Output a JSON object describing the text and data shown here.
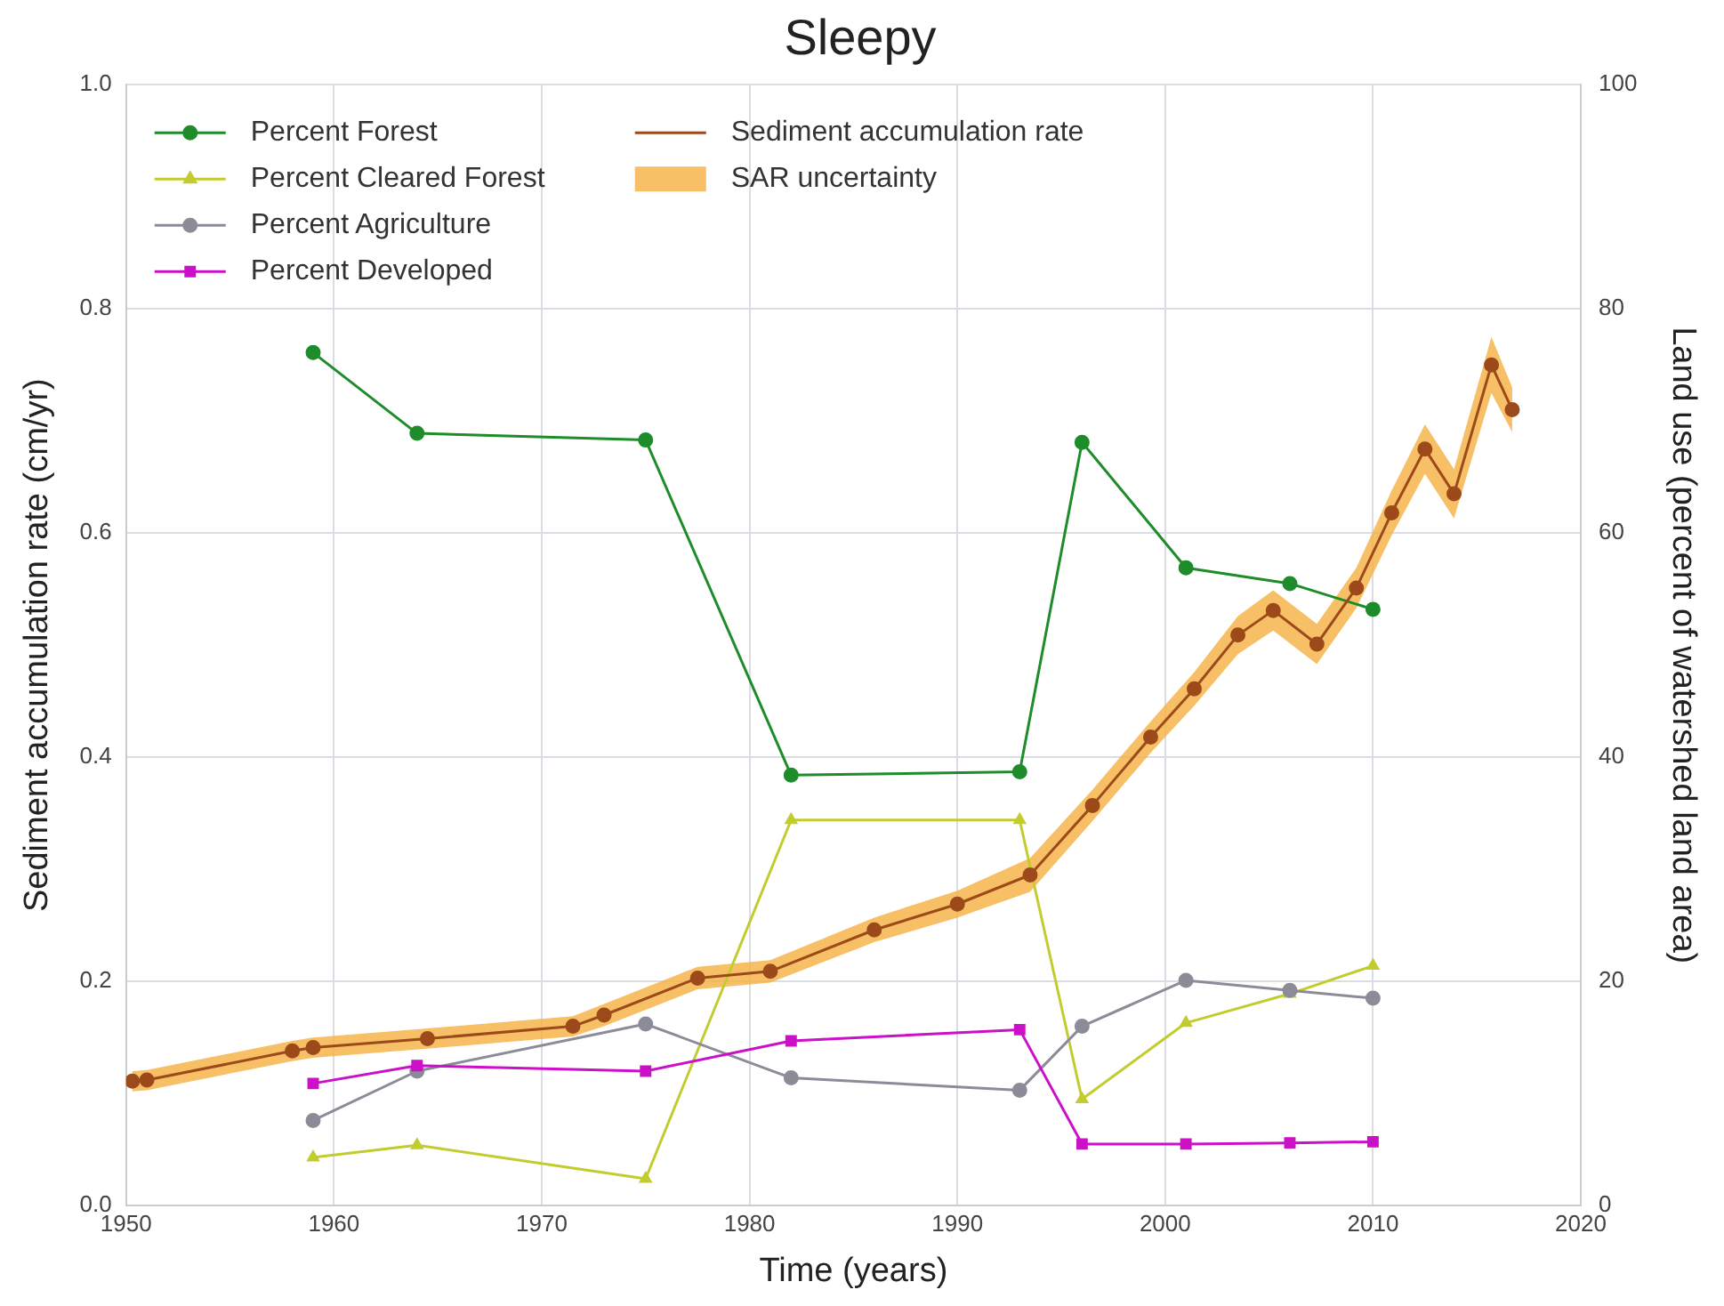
{
  "chart_data": {
    "type": "line",
    "title": "Sleepy",
    "xlabel": "Time (years)",
    "ylabel": "Sediment accumulation rate (cm/yr)",
    "y2label": "Land use (percent of watershed land area)",
    "xlim": [
      1950,
      2020
    ],
    "xticks": [
      1950,
      1960,
      1970,
      1980,
      1990,
      2000,
      2010,
      2020
    ],
    "ylim": [
      0,
      1.0
    ],
    "yticks": [
      {
        "value": 0,
        "label": "0.0"
      },
      {
        "value": 0.2,
        "label": "0.2"
      },
      {
        "value": 0.4,
        "label": "0.4"
      },
      {
        "value": 0.6,
        "label": "0.6"
      },
      {
        "value": 0.8,
        "label": "0.8"
      },
      {
        "value": 1.0,
        "label": "1.0"
      }
    ],
    "y2lim": [
      0,
      100
    ],
    "y2ticks": [
      0,
      20,
      40,
      60,
      80,
      100
    ],
    "grid": true,
    "legend": "top left",
    "line_style": "solid",
    "series": [
      {
        "name": "Percent Forest",
        "color": "#1e8c2a",
        "axis": "y2",
        "marker": "circle",
        "x": [
          1959,
          1964,
          1975,
          1982,
          1993,
          1996,
          2001,
          2006,
          2010
        ],
        "values": [
          76.1,
          68.9,
          68.3,
          38.4,
          38.7,
          68.1,
          56.9,
          55.5,
          53.2
        ]
      },
      {
        "name": "Percent Cleared Forest",
        "color": "#c3cc2e",
        "axis": "y2",
        "marker": "triangle",
        "x": [
          1959,
          1964,
          1975,
          1982,
          1993,
          1996,
          2001,
          2006,
          2010
        ],
        "values": [
          4.3,
          5.4,
          2.4,
          34.4,
          34.4,
          9.5,
          16.3,
          18.9,
          21.4
        ]
      },
      {
        "name": "Percent Agriculture",
        "color": "#8c8c98",
        "axis": "y2",
        "marker": "circle",
        "x": [
          1959,
          1964,
          1975,
          1982,
          1993,
          1996,
          2001,
          2006,
          2010
        ],
        "values": [
          7.6,
          12.0,
          16.2,
          11.4,
          10.3,
          16.0,
          20.1,
          19.2,
          18.5
        ]
      },
      {
        "name": "Percent Developed",
        "color": "#cc10c8",
        "axis": "y2",
        "marker": "square",
        "x": [
          1959,
          1964,
          1975,
          1982,
          1993,
          1996,
          2001,
          2006,
          2010
        ],
        "values": [
          10.9,
          12.5,
          12.0,
          14.7,
          15.7,
          5.5,
          5.5,
          5.6,
          5.7
        ]
      },
      {
        "name": "Sediment accumulation rate",
        "color": "#9c4a1a",
        "marker": "circle",
        "x": [
          1950.3,
          1951,
          1958,
          1959,
          1964.5,
          1971.5,
          1973,
          1977.5,
          1981,
          1986,
          1990,
          1993.5,
          1996.5,
          1999.3,
          2001.4,
          2003.5,
          2005.2,
          2007.3,
          2009.2,
          2010.9,
          2012.5,
          2013.9,
          2015.7,
          2016.7
        ],
        "values": [
          0.111,
          0.112,
          0.138,
          0.141,
          0.149,
          0.16,
          0.17,
          0.203,
          0.209,
          0.246,
          0.269,
          0.295,
          0.357,
          0.418,
          0.461,
          0.509,
          0.531,
          0.501,
          0.551,
          0.618,
          0.675,
          0.635,
          0.75,
          0.71
        ]
      },
      {
        "name": "SAR uncertainty",
        "type": "area",
        "color": "#f5b041",
        "x": [
          1950.3,
          1951,
          1958,
          1959,
          1964.5,
          1971.5,
          1973,
          1977.5,
          1981,
          1986,
          1990,
          1993.5,
          1996.5,
          1999.3,
          2001.4,
          2003.5,
          2005.2,
          2007.3,
          2009.2,
          2010.9,
          2012.5,
          2013.9,
          2015.7,
          2016.7
        ],
        "values": [
          null,
          null,
          null,
          null,
          null,
          null,
          null,
          null,
          null,
          null,
          null,
          null,
          null,
          null,
          null,
          null,
          null,
          null,
          null,
          null,
          null,
          null,
          null,
          null
        ],
        "lower": [
          0.102,
          0.103,
          0.129,
          0.132,
          0.14,
          0.151,
          0.16,
          0.193,
          0.199,
          0.235,
          0.257,
          0.28,
          0.343,
          0.404,
          0.446,
          0.492,
          0.513,
          0.483,
          0.533,
          0.598,
          0.653,
          0.613,
          0.725,
          0.69
        ],
        "upper": [
          0.12,
          0.121,
          0.147,
          0.15,
          0.158,
          0.169,
          0.18,
          0.213,
          0.219,
          0.257,
          0.281,
          0.31,
          0.371,
          0.432,
          0.476,
          0.526,
          0.549,
          0.519,
          0.569,
          0.638,
          0.697,
          0.657,
          0.775,
          0.73
        ]
      }
    ]
  }
}
